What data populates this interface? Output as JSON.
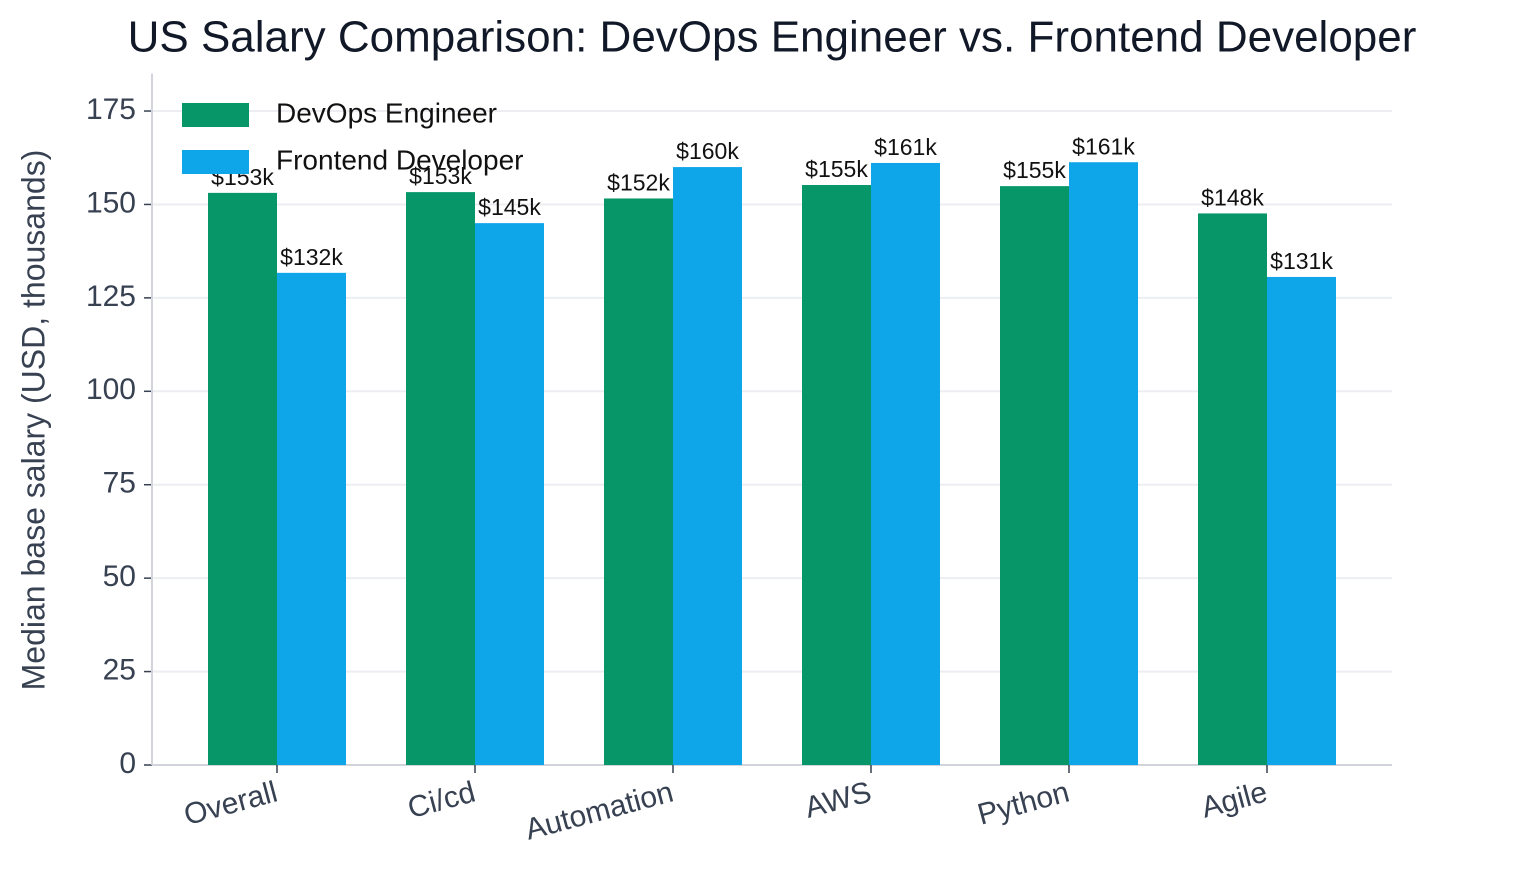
{
  "chart_data": {
    "type": "bar",
    "title": "US Salary Comparison: DevOps Engineer vs. Frontend Developer",
    "y_label": "Median base salary (USD, thousands)",
    "categories": [
      "Overall",
      "Ci/cd",
      "Automation",
      "AWS",
      "Python",
      "Agile"
    ],
    "series": [
      {
        "name": "DevOps Engineer",
        "color": "#069668",
        "values": [
          153.1,
          153.3,
          151.6,
          155.2,
          154.9,
          147.6
        ],
        "value_labels": [
          "$153k",
          "$153k",
          "$152k",
          "$155k",
          "$155k",
          "$148k"
        ]
      },
      {
        "name": "Frontend Developer",
        "color": "#0ea5e9",
        "values": [
          131.7,
          145.0,
          160.0,
          161.1,
          161.3,
          130.6
        ],
        "value_labels": [
          "$132k",
          "$145k",
          "$160k",
          "$161k",
          "$161k",
          "$131k"
        ]
      }
    ],
    "ylim": [
      0,
      185
    ],
    "yticks": [
      0,
      25,
      50,
      75,
      100,
      125,
      150,
      175
    ],
    "grid": true,
    "legend": "upper-left"
  }
}
